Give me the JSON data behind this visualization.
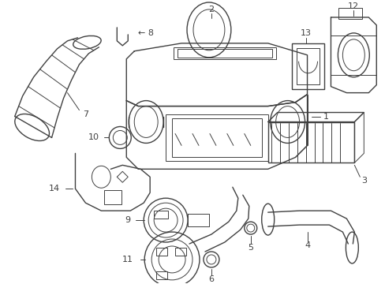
{
  "bg_color": "#ffffff",
  "line_color": "#404040",
  "label_color": "#000000",
  "fig_w": 4.89,
  "fig_h": 3.6,
  "dpi": 100
}
